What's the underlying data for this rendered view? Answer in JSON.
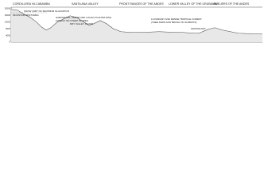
{
  "regions": [
    "CORDILLERA VILCABAMBA",
    "SANTA ANA VALLEY",
    "FRONT RANGES OF THE ANDES",
    "LOWER VALLEY OF THE URUBAMBA",
    "OUTLIERS OF THE ANDES"
  ],
  "zones": [
    "SNOW LIMIT OF MAXIMUM GLACIATION",
    "MOUNTAIN PASTURES",
    "HARDWOOD, CEDAR AND CACAO PLANTATIONS",
    "FOREST ON STEEP SLOPES",
    "DRY VALLEY FLOOR",
    "LUXURIANT AND DENSE TROPICAL FOREST",
    "(TREE FERN AND BRUSH ON SUMMITS)",
    "GRASSLAND"
  ],
  "elevations": [
    "20000",
    "16000",
    "12000",
    "8000",
    "4000",
    "0"
  ]
}
